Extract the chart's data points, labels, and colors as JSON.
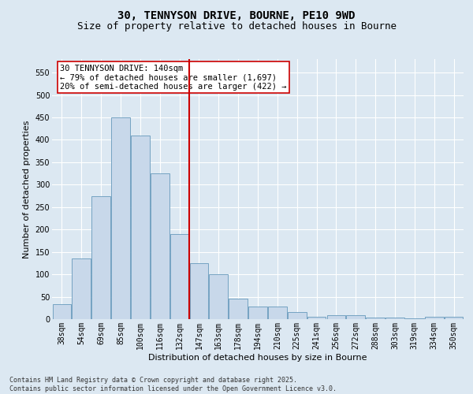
{
  "title_line1": "30, TENNYSON DRIVE, BOURNE, PE10 9WD",
  "title_line2": "Size of property relative to detached houses in Bourne",
  "xlabel": "Distribution of detached houses by size in Bourne",
  "ylabel": "Number of detached properties",
  "categories": [
    "38sqm",
    "54sqm",
    "69sqm",
    "85sqm",
    "100sqm",
    "116sqm",
    "132sqm",
    "147sqm",
    "163sqm",
    "178sqm",
    "194sqm",
    "210sqm",
    "225sqm",
    "241sqm",
    "256sqm",
    "272sqm",
    "288sqm",
    "303sqm",
    "319sqm",
    "334sqm",
    "350sqm"
  ],
  "values": [
    33,
    135,
    275,
    450,
    410,
    325,
    190,
    125,
    100,
    45,
    29,
    29,
    16,
    6,
    8,
    9,
    3,
    3,
    2,
    6,
    6
  ],
  "bar_color": "#c8d8ea",
  "bar_edge_color": "#6699bb",
  "vline_x_index": 7,
  "vline_color": "#cc0000",
  "annotation_line1": "30 TENNYSON DRIVE: 140sqm",
  "annotation_line2": "← 79% of detached houses are smaller (1,697)",
  "annotation_line3": "20% of semi-detached houses are larger (422) →",
  "annotation_box_edge_color": "#cc0000",
  "annotation_box_bg": "#ffffff",
  "ylim": [
    0,
    580
  ],
  "yticks": [
    0,
    50,
    100,
    150,
    200,
    250,
    300,
    350,
    400,
    450,
    500,
    550
  ],
  "background_color": "#dce8f2",
  "plot_bg_color": "#dce8f2",
  "footer_text": "Contains HM Land Registry data © Crown copyright and database right 2025.\nContains public sector information licensed under the Open Government Licence v3.0.",
  "title_fontsize": 10,
  "subtitle_fontsize": 9,
  "axis_label_fontsize": 8,
  "tick_fontsize": 7,
  "annotation_fontsize": 7.5,
  "footer_fontsize": 6
}
